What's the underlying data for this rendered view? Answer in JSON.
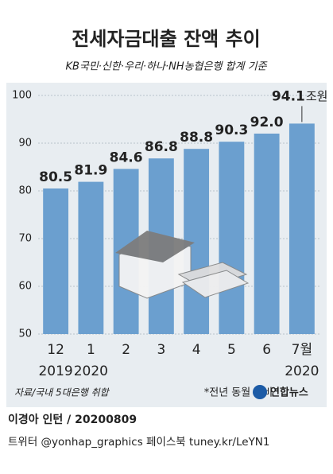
{
  "chart_data": {
    "type": "bar",
    "title": "전세자금대출 잔액 추이",
    "subtitle": "KB국민·신한·우리·하나·NH농협은행 합계 기준",
    "categories": [
      "12",
      "1",
      "2",
      "3",
      "4",
      "5",
      "6",
      "7월"
    ],
    "year_labels": [
      "2019",
      "2020",
      null,
      null,
      null,
      null,
      null,
      "2020"
    ],
    "values": [
      80.5,
      81.9,
      84.6,
      86.8,
      88.8,
      90.3,
      92.0,
      94.1
    ],
    "value_labels": [
      "80.5",
      "81.9",
      "84.6",
      "86.8",
      "88.8",
      "90.3",
      "92.0",
      "94.1"
    ],
    "unit": "조원",
    "color": "#6b9fcf",
    "ylim": [
      50,
      100
    ],
    "yticks": [
      50,
      60,
      70,
      80,
      90,
      100
    ],
    "grid": true,
    "note": "*전년 동월 대비",
    "source": "자료/국내 5대은행 취합",
    "logo": "연합뉴스"
  },
  "footer": {
    "author": "이경아 인턴 / 20200809",
    "sns": "트위터 @yonhap_graphics  페이스북 tuney.kr/LeYN1"
  }
}
